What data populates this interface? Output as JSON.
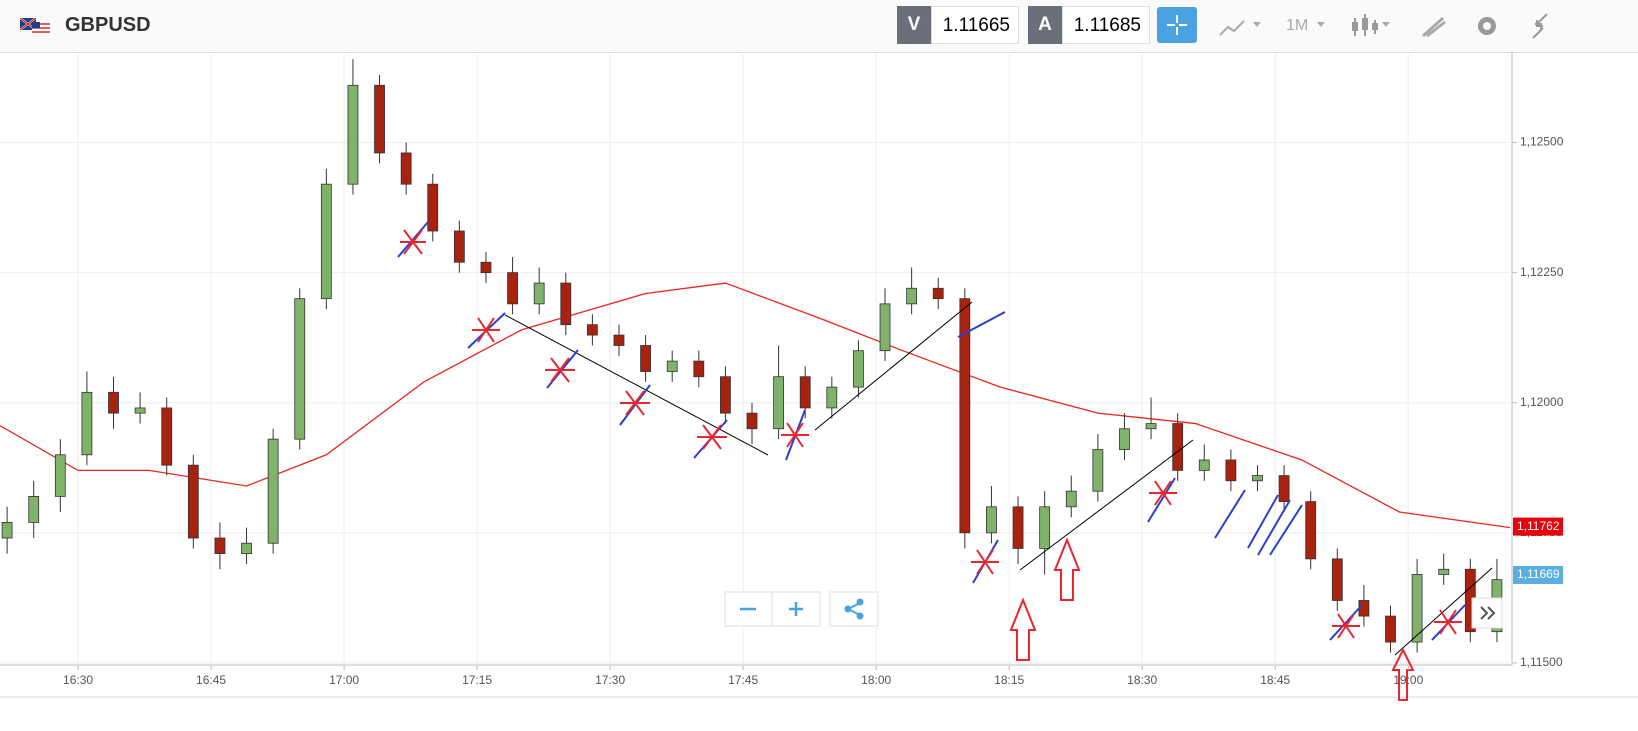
{
  "header": {
    "symbol": "GBPUSD",
    "bid_label": "V",
    "bid": "1.11665",
    "ask_label": "A",
    "ask": "1.11685",
    "timeframe": "1M"
  },
  "chart_data": {
    "type": "candlestick",
    "x": [
      22,
      25,
      28,
      31,
      34,
      37,
      40,
      43,
      46,
      49,
      52,
      55,
      58,
      61,
      64,
      67,
      70,
      73,
      76,
      79,
      82,
      85,
      88,
      91,
      94,
      97,
      100,
      103,
      106,
      109,
      112,
      115,
      118,
      121,
      124,
      127,
      130,
      133,
      136,
      139,
      142,
      145,
      148,
      151,
      154,
      157,
      160,
      163,
      166,
      169,
      172,
      175,
      178,
      181,
      184,
      187,
      190
    ],
    "open": [
      1.1174,
      1.1177,
      1.1182,
      1.119,
      1.1202,
      1.1198,
      1.1199,
      1.1188,
      1.1174,
      1.1171,
      1.1173,
      1.1193,
      1.122,
      1.1242,
      1.1261,
      1.1248,
      1.1242,
      1.1233,
      1.1227,
      1.1225,
      1.1219,
      1.1223,
      1.1215,
      1.1213,
      1.1211,
      1.1206,
      1.1208,
      1.1205,
      1.1198,
      1.1195,
      1.1205,
      1.1199,
      1.1203,
      1.121,
      1.1219,
      1.1222,
      1.122,
      1.1175,
      1.118,
      1.1172,
      1.118,
      1.1183,
      1.1191,
      1.1195,
      1.1196,
      1.1187,
      1.1189,
      1.1185,
      1.1186,
      1.1181,
      1.117,
      1.1162,
      1.1159,
      1.1154,
      1.1167,
      1.1168,
      1.1156
    ],
    "high": [
      1.118,
      1.1185,
      1.1193,
      1.1206,
      1.1205,
      1.1202,
      1.1201,
      1.119,
      1.1177,
      1.1176,
      1.1195,
      1.1222,
      1.1245,
      1.1266,
      1.1263,
      1.125,
      1.1244,
      1.1235,
      1.1229,
      1.1228,
      1.1226,
      1.1225,
      1.1217,
      1.1215,
      1.1213,
      1.121,
      1.121,
      1.1207,
      1.12,
      1.1211,
      1.1207,
      1.1205,
      1.1212,
      1.1222,
      1.1226,
      1.1224,
      1.1222,
      1.1184,
      1.1182,
      1.1183,
      1.1186,
      1.1194,
      1.1198,
      1.1201,
      1.1198,
      1.1192,
      1.1191,
      1.1188,
      1.1188,
      1.1183,
      1.1172,
      1.1165,
      1.1161,
      1.117,
      1.1171,
      1.117,
      1.117
    ],
    "low": [
      1.1171,
      1.1174,
      1.1179,
      1.1188,
      1.1195,
      1.1196,
      1.1186,
      1.1172,
      1.1168,
      1.1169,
      1.1171,
      1.1191,
      1.1218,
      1.124,
      1.1246,
      1.124,
      1.1231,
      1.1225,
      1.1223,
      1.1217,
      1.1217,
      1.1213,
      1.1211,
      1.1209,
      1.1204,
      1.1204,
      1.1203,
      1.1196,
      1.1192,
      1.1193,
      1.1197,
      1.1197,
      1.1201,
      1.1208,
      1.1217,
      1.1218,
      1.1172,
      1.1173,
      1.1169,
      1.1167,
      1.1178,
      1.1181,
      1.1189,
      1.1193,
      1.1185,
      1.1185,
      1.1183,
      1.1183,
      1.1179,
      1.1168,
      1.116,
      1.1157,
      1.1152,
      1.1152,
      1.1165,
      1.1154,
      1.1154
    ],
    "close": [
      1.1177,
      1.1182,
      1.119,
      1.1202,
      1.1198,
      1.1199,
      1.1188,
      1.1174,
      1.1171,
      1.1173,
      1.1193,
      1.122,
      1.1242,
      1.1261,
      1.1248,
      1.1242,
      1.1233,
      1.1227,
      1.1225,
      1.1219,
      1.1223,
      1.1215,
      1.1213,
      1.1211,
      1.1206,
      1.1208,
      1.1205,
      1.1198,
      1.1195,
      1.1205,
      1.1199,
      1.1203,
      1.121,
      1.1219,
      1.1222,
      1.122,
      1.1175,
      1.118,
      1.1172,
      1.118,
      1.1183,
      1.1191,
      1.1195,
      1.1196,
      1.1187,
      1.1189,
      1.1185,
      1.1186,
      1.1181,
      1.117,
      1.1162,
      1.1159,
      1.1154,
      1.1167,
      1.1168,
      1.1156,
      1.1166
    ],
    "up_color": "#7fb36a",
    "down_color": "#a8230f",
    "moving_average": {
      "color": "#e8261e",
      "x": [
        21.2,
        30,
        38,
        49,
        58,
        69,
        80,
        94,
        103,
        114,
        123,
        134,
        145,
        156,
        168,
        179,
        191.5
      ],
      "values": [
        1.11956,
        1.1187,
        1.1187,
        1.1184,
        1.119,
        1.1204,
        1.1214,
        1.1221,
        1.1223,
        1.1216,
        1.121,
        1.1203,
        1.1198,
        1.1196,
        1.1189,
        1.1179,
        1.1176
      ]
    },
    "price_tags": [
      {
        "value": 1.11762,
        "label": "1,11762",
        "color": "#e8000b"
      },
      {
        "value": 1.11669,
        "label": "1,11669",
        "color": "#5aaee0"
      }
    ],
    "xlim": [
      21.2,
      191.7
    ],
    "ylim": [
      1.11496,
      1.12674
    ],
    "xticks": [
      {
        "value": 30,
        "label": "16:30"
      },
      {
        "value": 45,
        "label": "16:45"
      },
      {
        "value": 60,
        "label": "17:00"
      },
      {
        "value": 75,
        "label": "17:15"
      },
      {
        "value": 90,
        "label": "17:30"
      },
      {
        "value": 105,
        "label": "17:45"
      },
      {
        "value": 120,
        "label": "18:00"
      },
      {
        "value": 135,
        "label": "18:15"
      },
      {
        "value": 150,
        "label": "18:30"
      },
      {
        "value": 165,
        "label": "18:45"
      },
      {
        "value": 180,
        "label": "19:00"
      }
    ],
    "yticks": [
      {
        "value": 1.115,
        "label": "1,11500"
      },
      {
        "value": 1.1175,
        "label": "1,11750"
      },
      {
        "value": 1.12,
        "label": "1,12000"
      },
      {
        "value": 1.1225,
        "label": "1,12250"
      },
      {
        "value": 1.125,
        "label": "1,12500"
      }
    ],
    "grid": true
  }
}
